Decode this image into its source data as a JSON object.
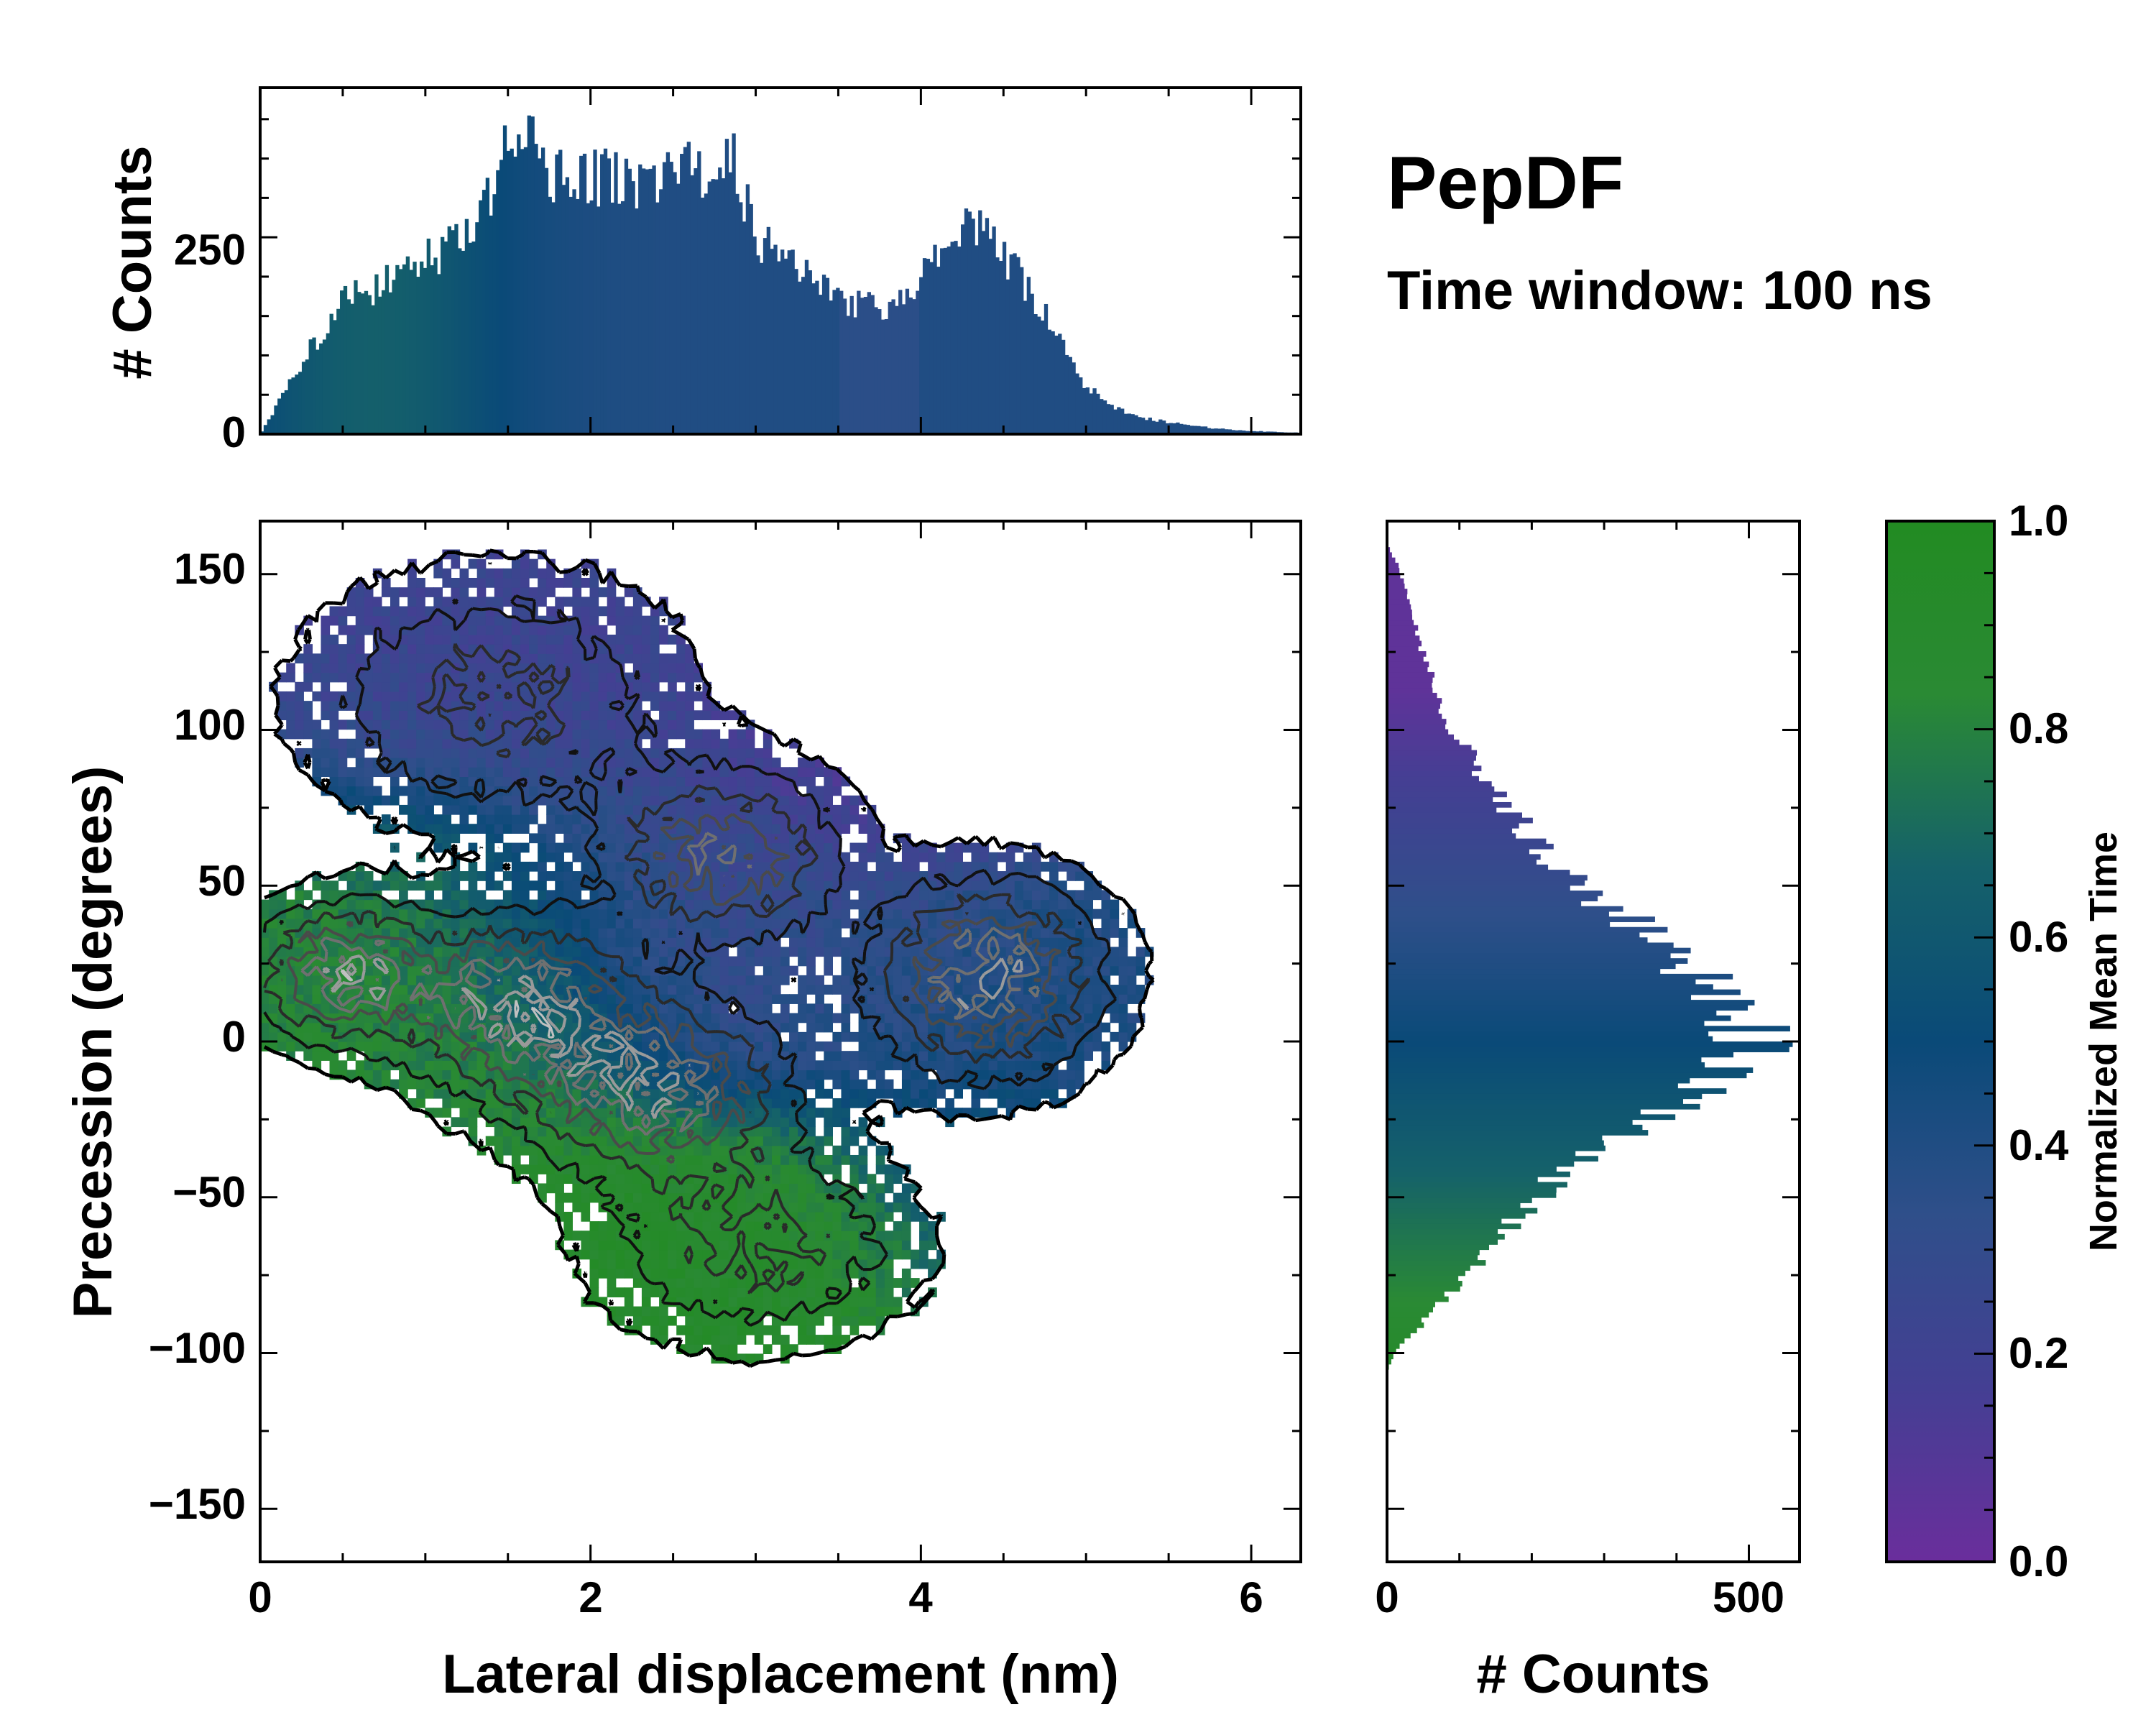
{
  "chart_data": [
    {
      "panel": "top-marginal",
      "type": "bar",
      "ylabel": "# Counts",
      "x_range": [
        0,
        6.3
      ],
      "ylim": [
        0,
        440
      ],
      "yticks": [
        0,
        250
      ],
      "x_centers": [
        0.25,
        0.5,
        0.75,
        1.0,
        1.25,
        1.5,
        1.6,
        1.75,
        2.0,
        2.25,
        2.5,
        2.75,
        2.85,
        3.0,
        3.25,
        3.5,
        3.75,
        3.9,
        4.1,
        4.3,
        4.5,
        4.75,
        5.0,
        5.25,
        5.5,
        5.75,
        6.0,
        6.25
      ],
      "values": [
        90,
        170,
        190,
        220,
        250,
        360,
        400,
        330,
        330,
        320,
        330,
        340,
        360,
        250,
        220,
        170,
        160,
        170,
        220,
        270,
        230,
        150,
        60,
        25,
        15,
        8,
        4,
        2
      ]
    },
    {
      "panel": "main-2d-histogram",
      "type": "heatmap",
      "title": "PepDF",
      "subtitle": "Time window: 100 ns",
      "xlabel": "Lateral displacement (nm)",
      "ylabel": "Precession (degrees)",
      "xlim": [
        0,
        6.3
      ],
      "ylim": [
        -167,
        167
      ],
      "xticks": [
        "0",
        "2",
        "4",
        "6"
      ],
      "yticks": [
        "150",
        "100",
        "50",
        "0",
        "−50",
        "−100",
        "−150"
      ],
      "regions": [
        {
          "x": 1.7,
          "y": 118,
          "sx": 1.1,
          "sy": 28,
          "t": 0.22
        },
        {
          "x": 3.9,
          "y": 95,
          "sx": 0.6,
          "sy": 25,
          "t": 0.08
        },
        {
          "x": 2.9,
          "y": 40,
          "sx": 0.9,
          "sy": 30,
          "t": 0.28
        },
        {
          "x": 4.3,
          "y": 18,
          "sx": 0.7,
          "sy": 28,
          "t": 0.42
        },
        {
          "x": 5.4,
          "y": 28,
          "sx": 0.5,
          "sy": 22,
          "t": 0.4
        },
        {
          "x": 0.9,
          "y": 5,
          "sx": 0.8,
          "sy": 40,
          "t": 0.82
        },
        {
          "x": 1.9,
          "y": -70,
          "sx": 0.9,
          "sy": 22,
          "t": 0.92
        },
        {
          "x": 3.0,
          "y": -65,
          "sx": 0.7,
          "sy": 22,
          "t": 0.88
        },
        {
          "x": 4.5,
          "y": -50,
          "sx": 0.6,
          "sy": 20,
          "t": 0.58
        }
      ],
      "density_peaks": [
        {
          "x": 0.5,
          "y": 22,
          "sx": 0.35,
          "sy": 14,
          "w": 1.0
        },
        {
          "x": 1.55,
          "y": 12,
          "sx": 0.45,
          "sy": 18,
          "w": 1.0
        },
        {
          "x": 2.4,
          "y": -15,
          "sx": 0.5,
          "sy": 18,
          "w": 0.95
        },
        {
          "x": 2.8,
          "y": 60,
          "sx": 0.45,
          "sy": 18,
          "w": 0.8
        },
        {
          "x": 4.4,
          "y": 20,
          "sx": 0.45,
          "sy": 20,
          "w": 1.0
        },
        {
          "x": 1.4,
          "y": 110,
          "sx": 0.7,
          "sy": 25,
          "w": 0.5
        },
        {
          "x": 3.0,
          "y": -65,
          "sx": 0.6,
          "sy": 20,
          "w": 0.5
        }
      ]
    },
    {
      "panel": "right-marginal",
      "type": "bar",
      "orientation": "horizontal",
      "xlabel": "# Counts",
      "xlim": [
        0,
        570
      ],
      "xticks": [
        "0",
        "500"
      ],
      "y_centers": [
        150,
        125,
        100,
        80,
        60,
        45,
        30,
        15,
        0,
        -15,
        -30,
        -45,
        -60,
        -75,
        -90,
        -100
      ],
      "values": [
        20,
        50,
        90,
        150,
        220,
        300,
        380,
        470,
        510,
        440,
        320,
        230,
        170,
        110,
        50,
        10
      ]
    },
    {
      "panel": "colorbar",
      "type": "colorbar",
      "label": "Normalized Mean Time",
      "range": [
        0.0,
        1.0
      ],
      "ticks": [
        "1.0",
        "0.8",
        "0.6",
        "0.4",
        "0.2",
        "0.0"
      ],
      "colors": [
        "#6a2e9c",
        "#443f93",
        "#2f4f8a",
        "#0a4a78",
        "#15616a",
        "#2a8a34",
        "#228b22"
      ]
    }
  ],
  "labels": {
    "title": "PepDF",
    "subtitle": "Time window: 100 ns",
    "top_ylabel": "# Counts",
    "main_xlabel": "Lateral displacement (nm)",
    "main_ylabel": "Precession (degrees)",
    "right_xlabel": "# Counts",
    "cb_label": "Normalized Mean Time"
  }
}
